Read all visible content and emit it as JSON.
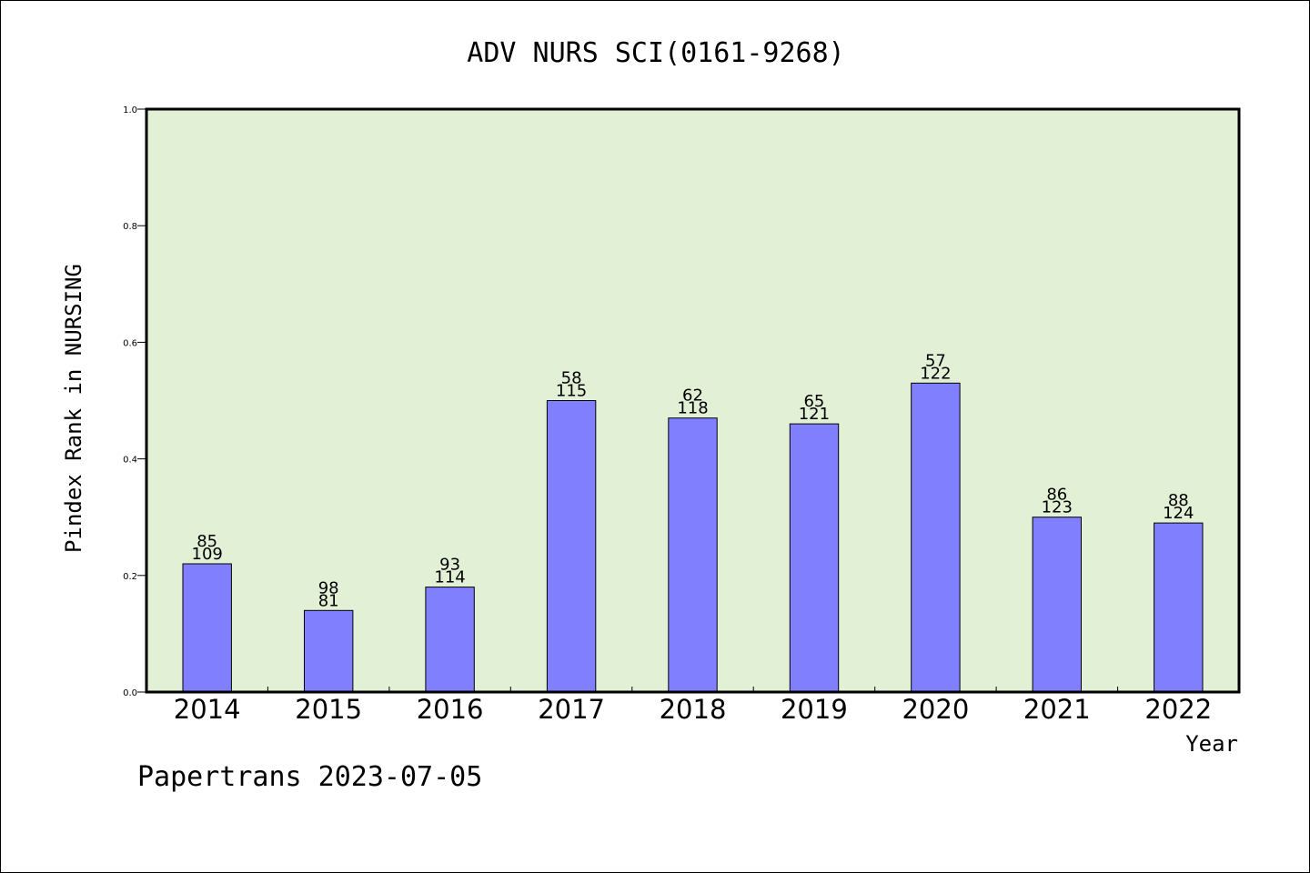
{
  "chart_data": {
    "type": "bar",
    "title": "ADV NURS SCI(0161-9268)",
    "xlabel": "Year",
    "ylabel": "Pindex Rank in NURSING",
    "categories": [
      "2014",
      "2015",
      "2016",
      "2017",
      "2018",
      "2019",
      "2020",
      "2021",
      "2022"
    ],
    "values": [
      0.22,
      0.14,
      0.18,
      0.5,
      0.47,
      0.46,
      0.53,
      0.3,
      0.29
    ],
    "bar_labels_top": [
      "85",
      "98",
      "93",
      "58",
      "62",
      "65",
      "57",
      "86",
      "88"
    ],
    "bar_labels_bottom": [
      "109",
      "81",
      "114",
      "115",
      "118",
      "121",
      "122",
      "123",
      "124"
    ],
    "ylim": [
      0,
      1.0
    ],
    "yticks": [
      "0.0",
      "0.2",
      "0.4",
      "0.6",
      "0.8",
      "1.0"
    ],
    "grid": false,
    "legend": "none",
    "colors": {
      "plot_background": "#e2f0d6",
      "bar_fill": "#8080ff",
      "bar_stroke": "#000000"
    }
  },
  "footer": {
    "watermark": "Papertrans 2023-07-05"
  }
}
